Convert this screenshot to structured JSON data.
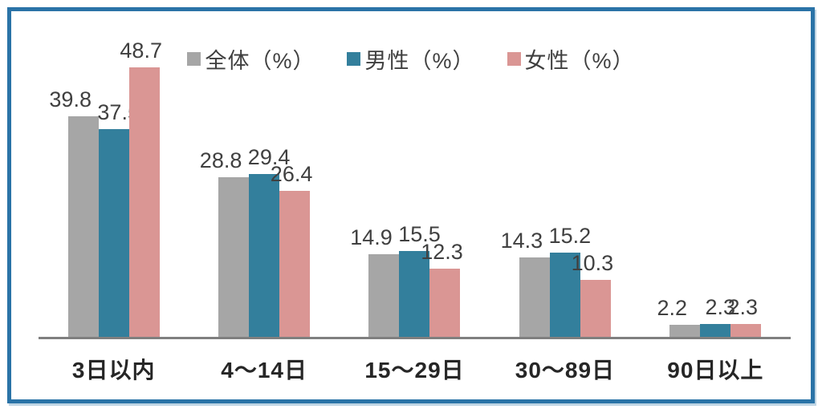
{
  "chart_data": {
    "type": "bar",
    "title": "",
    "categories": [
      "3日以内",
      "4～14日",
      "15～29日",
      "30～89日",
      "90日以上"
    ],
    "series": [
      {
        "name": "全体（%）",
        "color": "#a6a6a6",
        "values": [
          39.8,
          28.8,
          14.9,
          14.3,
          2.2
        ]
      },
      {
        "name": "男性（%）",
        "color": "#337f9c",
        "values": [
          37.5,
          29.4,
          15.5,
          15.2,
          2.3
        ]
      },
      {
        "name": "女性（%）",
        "color": "#da9694",
        "values": [
          48.7,
          26.4,
          12.3,
          10.3,
          2.3
        ]
      }
    ],
    "xlabel": "",
    "ylabel": "",
    "ylim": [
      0,
      50
    ],
    "grid": false,
    "value_labels": true,
    "legend_position": "top",
    "frame_color": "#2a73a7",
    "axis_line_color": "#7f7f7f",
    "label_text_color": "#404040"
  }
}
